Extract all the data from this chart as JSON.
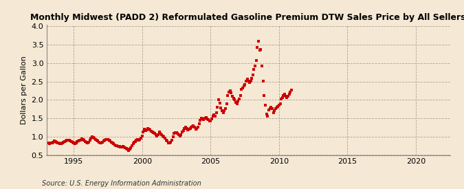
{
  "title": "Monthly Midwest (PADD 2) Reformulated Gasoline Premium DTW Sales Price by All Sellers",
  "ylabel": "Dollars per Gallon",
  "source": "Source: U.S. Energy Information Administration",
  "background_color": "#f5e9d5",
  "marker_color": "#cc0000",
  "xlim": [
    1993.0,
    2022.5
  ],
  "ylim": [
    0.5,
    4.05
  ],
  "xticks": [
    1995,
    2000,
    2005,
    2010,
    2015,
    2020
  ],
  "yticks": [
    0.5,
    1.0,
    1.5,
    2.0,
    2.5,
    3.0,
    3.5,
    4.0
  ],
  "data": [
    [
      1993.17,
      0.82
    ],
    [
      1993.25,
      0.8
    ],
    [
      1993.33,
      0.82
    ],
    [
      1993.42,
      0.83
    ],
    [
      1993.5,
      0.85
    ],
    [
      1993.58,
      0.88
    ],
    [
      1993.67,
      0.87
    ],
    [
      1993.75,
      0.85
    ],
    [
      1993.83,
      0.83
    ],
    [
      1993.92,
      0.82
    ],
    [
      1994.0,
      0.8
    ],
    [
      1994.08,
      0.8
    ],
    [
      1994.17,
      0.82
    ],
    [
      1994.25,
      0.84
    ],
    [
      1994.33,
      0.86
    ],
    [
      1994.42,
      0.88
    ],
    [
      1994.5,
      0.9
    ],
    [
      1994.58,
      0.91
    ],
    [
      1994.67,
      0.9
    ],
    [
      1994.75,
      0.88
    ],
    [
      1994.83,
      0.86
    ],
    [
      1994.92,
      0.84
    ],
    [
      1995.0,
      0.82
    ],
    [
      1995.08,
      0.81
    ],
    [
      1995.17,
      0.83
    ],
    [
      1995.25,
      0.86
    ],
    [
      1995.33,
      0.88
    ],
    [
      1995.42,
      0.9
    ],
    [
      1995.5,
      0.91
    ],
    [
      1995.58,
      0.94
    ],
    [
      1995.67,
      0.93
    ],
    [
      1995.75,
      0.9
    ],
    [
      1995.83,
      0.87
    ],
    [
      1995.92,
      0.85
    ],
    [
      1996.0,
      0.83
    ],
    [
      1996.08,
      0.85
    ],
    [
      1996.17,
      0.9
    ],
    [
      1996.25,
      0.95
    ],
    [
      1996.33,
      1.0
    ],
    [
      1996.42,
      0.97
    ],
    [
      1996.5,
      0.95
    ],
    [
      1996.58,
      0.93
    ],
    [
      1996.67,
      0.9
    ],
    [
      1996.75,
      0.88
    ],
    [
      1996.83,
      0.85
    ],
    [
      1996.92,
      0.83
    ],
    [
      1997.0,
      0.82
    ],
    [
      1997.08,
      0.84
    ],
    [
      1997.17,
      0.88
    ],
    [
      1997.25,
      0.9
    ],
    [
      1997.33,
      0.92
    ],
    [
      1997.42,
      0.93
    ],
    [
      1997.5,
      0.92
    ],
    [
      1997.58,
      0.9
    ],
    [
      1997.67,
      0.88
    ],
    [
      1997.75,
      0.85
    ],
    [
      1997.83,
      0.83
    ],
    [
      1997.92,
      0.8
    ],
    [
      1998.0,
      0.78
    ],
    [
      1998.08,
      0.76
    ],
    [
      1998.17,
      0.75
    ],
    [
      1998.25,
      0.74
    ],
    [
      1998.33,
      0.73
    ],
    [
      1998.42,
      0.72
    ],
    [
      1998.5,
      0.72
    ],
    [
      1998.58,
      0.73
    ],
    [
      1998.67,
      0.72
    ],
    [
      1998.75,
      0.7
    ],
    [
      1998.83,
      0.68
    ],
    [
      1998.92,
      0.65
    ],
    [
      1999.0,
      0.63
    ],
    [
      1999.08,
      0.65
    ],
    [
      1999.17,
      0.7
    ],
    [
      1999.25,
      0.76
    ],
    [
      1999.33,
      0.8
    ],
    [
      1999.42,
      0.85
    ],
    [
      1999.5,
      0.87
    ],
    [
      1999.58,
      0.9
    ],
    [
      1999.67,
      0.92
    ],
    [
      1999.75,
      0.91
    ],
    [
      1999.83,
      0.93
    ],
    [
      1999.92,
      0.96
    ],
    [
      2000.0,
      1.02
    ],
    [
      2000.08,
      1.12
    ],
    [
      2000.17,
      1.2
    ],
    [
      2000.25,
      1.16
    ],
    [
      2000.33,
      1.18
    ],
    [
      2000.42,
      1.22
    ],
    [
      2000.5,
      1.2
    ],
    [
      2000.58,
      1.18
    ],
    [
      2000.67,
      1.15
    ],
    [
      2000.75,
      1.12
    ],
    [
      2000.83,
      1.1
    ],
    [
      2000.92,
      1.08
    ],
    [
      2001.0,
      1.05
    ],
    [
      2001.08,
      1.02
    ],
    [
      2001.17,
      1.06
    ],
    [
      2001.25,
      1.12
    ],
    [
      2001.33,
      1.08
    ],
    [
      2001.42,
      1.05
    ],
    [
      2001.5,
      1.02
    ],
    [
      2001.58,
      1.0
    ],
    [
      2001.67,
      0.95
    ],
    [
      2001.75,
      0.9
    ],
    [
      2001.83,
      0.88
    ],
    [
      2001.92,
      0.83
    ],
    [
      2002.0,
      0.82
    ],
    [
      2002.08,
      0.85
    ],
    [
      2002.17,
      0.9
    ],
    [
      2002.25,
      1.0
    ],
    [
      2002.33,
      1.08
    ],
    [
      2002.42,
      1.1
    ],
    [
      2002.5,
      1.1
    ],
    [
      2002.58,
      1.08
    ],
    [
      2002.67,
      1.05
    ],
    [
      2002.75,
      1.02
    ],
    [
      2002.83,
      1.06
    ],
    [
      2002.92,
      1.12
    ],
    [
      2003.0,
      1.16
    ],
    [
      2003.08,
      1.22
    ],
    [
      2003.17,
      1.25
    ],
    [
      2003.25,
      1.22
    ],
    [
      2003.33,
      1.18
    ],
    [
      2003.42,
      1.2
    ],
    [
      2003.5,
      1.22
    ],
    [
      2003.58,
      1.25
    ],
    [
      2003.67,
      1.28
    ],
    [
      2003.75,
      1.3
    ],
    [
      2003.83,
      1.25
    ],
    [
      2003.92,
      1.2
    ],
    [
      2004.0,
      1.22
    ],
    [
      2004.08,
      1.26
    ],
    [
      2004.17,
      1.35
    ],
    [
      2004.25,
      1.45
    ],
    [
      2004.33,
      1.5
    ],
    [
      2004.42,
      1.48
    ],
    [
      2004.5,
      1.46
    ],
    [
      2004.58,
      1.5
    ],
    [
      2004.67,
      1.52
    ],
    [
      2004.75,
      1.48
    ],
    [
      2004.83,
      1.46
    ],
    [
      2004.92,
      1.43
    ],
    [
      2005.0,
      1.42
    ],
    [
      2005.08,
      1.48
    ],
    [
      2005.17,
      1.56
    ],
    [
      2005.25,
      1.6
    ],
    [
      2005.33,
      1.55
    ],
    [
      2005.42,
      1.65
    ],
    [
      2005.5,
      1.8
    ],
    [
      2005.58,
      2.0
    ],
    [
      2005.67,
      1.92
    ],
    [
      2005.75,
      1.78
    ],
    [
      2005.83,
      1.7
    ],
    [
      2005.92,
      1.65
    ],
    [
      2006.0,
      1.7
    ],
    [
      2006.08,
      1.76
    ],
    [
      2006.17,
      1.9
    ],
    [
      2006.25,
      2.12
    ],
    [
      2006.33,
      2.22
    ],
    [
      2006.42,
      2.25
    ],
    [
      2006.5,
      2.2
    ],
    [
      2006.58,
      2.1
    ],
    [
      2006.67,
      2.05
    ],
    [
      2006.75,
      2.0
    ],
    [
      2006.83,
      1.94
    ],
    [
      2006.92,
      1.9
    ],
    [
      2007.0,
      1.96
    ],
    [
      2007.08,
      2.02
    ],
    [
      2007.17,
      2.12
    ],
    [
      2007.25,
      2.28
    ],
    [
      2007.33,
      2.32
    ],
    [
      2007.42,
      2.38
    ],
    [
      2007.5,
      2.42
    ],
    [
      2007.58,
      2.52
    ],
    [
      2007.67,
      2.56
    ],
    [
      2007.75,
      2.52
    ],
    [
      2007.83,
      2.48
    ],
    [
      2007.92,
      2.52
    ],
    [
      2008.0,
      2.58
    ],
    [
      2008.08,
      2.68
    ],
    [
      2008.17,
      2.82
    ],
    [
      2008.25,
      2.92
    ],
    [
      2008.33,
      3.08
    ],
    [
      2008.42,
      3.42
    ],
    [
      2008.5,
      3.6
    ],
    [
      2008.58,
      3.35
    ],
    [
      2008.67,
      3.38
    ],
    [
      2008.75,
      2.92
    ],
    [
      2008.83,
      2.52
    ],
    [
      2008.92,
      2.12
    ],
    [
      2009.0,
      1.85
    ],
    [
      2009.08,
      1.62
    ],
    [
      2009.17,
      1.56
    ],
    [
      2009.25,
      1.72
    ],
    [
      2009.33,
      1.76
    ],
    [
      2009.42,
      1.8
    ],
    [
      2009.5,
      1.76
    ],
    [
      2009.58,
      1.65
    ],
    [
      2009.67,
      1.7
    ],
    [
      2009.75,
      1.76
    ],
    [
      2009.83,
      1.8
    ],
    [
      2009.92,
      1.82
    ],
    [
      2010.0,
      1.86
    ],
    [
      2010.08,
      1.9
    ],
    [
      2010.17,
      2.02
    ],
    [
      2010.25,
      2.06
    ],
    [
      2010.33,
      2.12
    ],
    [
      2010.42,
      2.16
    ],
    [
      2010.5,
      2.1
    ],
    [
      2010.58,
      2.06
    ],
    [
      2010.67,
      2.1
    ],
    [
      2010.75,
      2.16
    ],
    [
      2010.83,
      2.22
    ],
    [
      2010.92,
      2.26
    ]
  ]
}
